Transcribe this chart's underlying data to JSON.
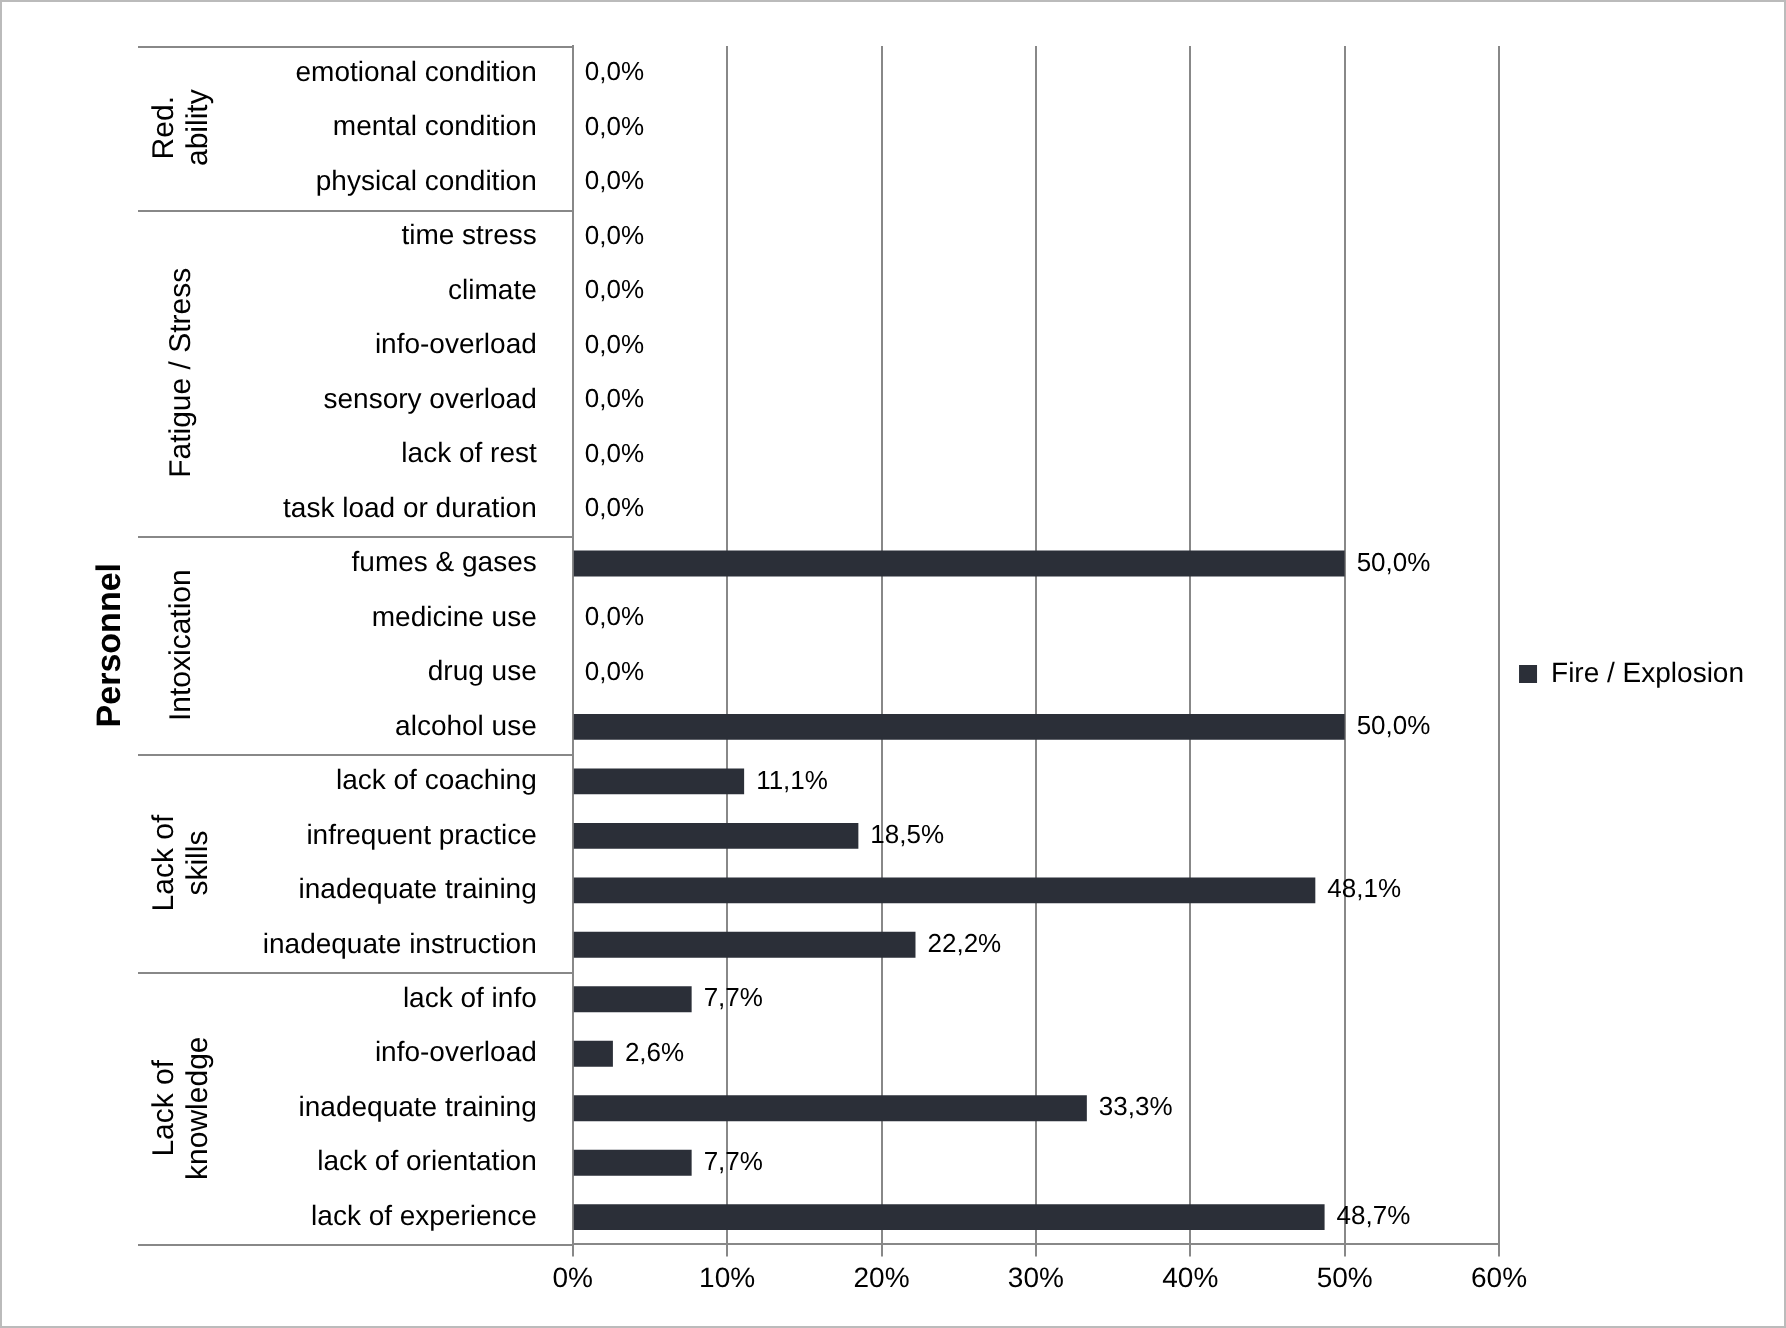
{
  "chart_data": {
    "type": "bar",
    "orientation": "horizontal",
    "ylabel": "Personnel",
    "categories": [
      "emotional condition",
      "mental condition",
      "physical condition",
      "time stress",
      "climate",
      "info-overload",
      "sensory overload",
      "lack of rest",
      "task load or duration",
      "fumes & gases",
      "medicine use",
      "drug use",
      "alcohol use",
      "lack of coaching",
      "infrequent practice",
      "inadequate training",
      "inadequate instruction",
      "lack of info",
      "info-overload",
      "inadequate training",
      "lack of orientation",
      "lack of experience"
    ],
    "series": [
      {
        "name": "Fire / Explosion",
        "color": "#2b2f38",
        "values": [
          0,
          0,
          0,
          0,
          0,
          0,
          0,
          0,
          0,
          50,
          0,
          0,
          50,
          11.1,
          18.5,
          48.1,
          22.2,
          7.7,
          2.6,
          33.3,
          7.7,
          48.7
        ],
        "value_labels": [
          "0,0%",
          "0,0%",
          "0,0%",
          "0,0%",
          "0,0%",
          "0,0%",
          "0,0%",
          "0,0%",
          "0,0%",
          "50,0%",
          "0,0%",
          "0,0%",
          "50,0%",
          "11,1%",
          "18,5%",
          "48,1%",
          "22,2%",
          "7,7%",
          "2,6%",
          "33,3%",
          "7,7%",
          "48,7%"
        ]
      }
    ],
    "xlim": [
      0,
      60
    ],
    "xticks": [
      {
        "value": 0,
        "label": "0%"
      },
      {
        "value": 10,
        "label": "10%"
      },
      {
        "value": 20,
        "label": "20%"
      },
      {
        "value": 30,
        "label": "30%"
      },
      {
        "value": 40,
        "label": "40%"
      },
      {
        "value": 50,
        "label": "50%"
      },
      {
        "value": 60,
        "label": "60%"
      }
    ],
    "grid": "x",
    "legend": "right",
    "annotations": [
      "Red.\nability",
      "Fatigue / Stress",
      "Intoxication",
      "Lack of\nskills",
      "Lack of\nknowledge"
    ]
  }
}
